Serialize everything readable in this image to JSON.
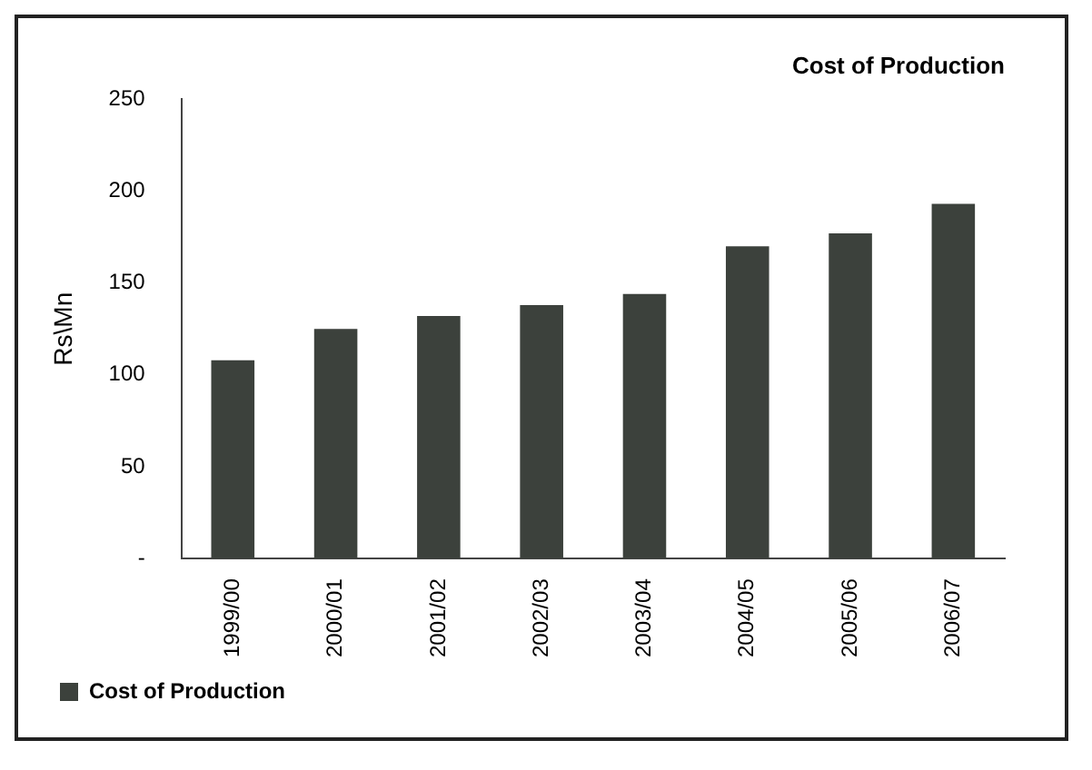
{
  "chart_data": {
    "type": "bar",
    "title": "Cost of Production",
    "ylabel": "Rs\\Mn",
    "categories": [
      "1999/00",
      "2000/01",
      "2001/02",
      "2002/03",
      "2003/04",
      "2004/05",
      "2005/06",
      "2006/07"
    ],
    "series": [
      {
        "name": "Cost of Production",
        "color": "#3c413c",
        "values": [
          108,
          125,
          132,
          138,
          144,
          170,
          177,
          193
        ]
      }
    ],
    "ylim": [
      0,
      250
    ],
    "yticks": [
      {
        "value": 0,
        "label": "-"
      },
      50,
      100,
      150,
      200,
      250
    ],
    "grid": false,
    "legend": "bottom left"
  }
}
